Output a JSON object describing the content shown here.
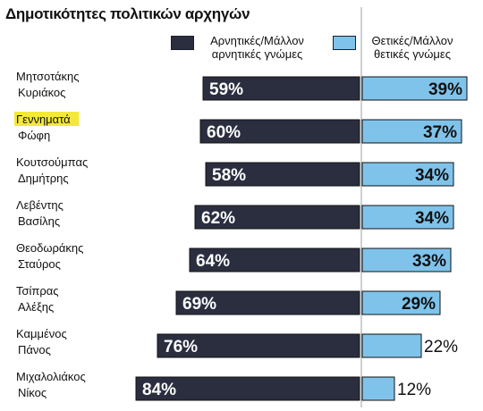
{
  "chart_data": {
    "type": "bar",
    "orientation": "horizontal-diverging",
    "title": "Δημοτικότητες πολιτικών αρχηγών",
    "categories": [
      [
        "Μητσοτάκης",
        "Κυριάκος"
      ],
      [
        "Γεννηματά",
        "Φώφη"
      ],
      [
        "Κουτσούμπας",
        "Δημήτρης"
      ],
      [
        "Λεβέντης",
        "Βασίλης"
      ],
      [
        "Θεοδωράκης",
        "Σταύρος"
      ],
      [
        "Τσίπρας",
        "Αλέξης"
      ],
      [
        "Καμμένος",
        "Πάνος"
      ],
      [
        "Μιχαλολιάκος",
        "Νίκος"
      ]
    ],
    "highlighted_category_index": 1,
    "series": [
      {
        "name": "Αρνητικές/Μάλλον αρνητικές γνώμες",
        "color": "#2a2e3f",
        "values": [
          59,
          60,
          58,
          62,
          64,
          69,
          76,
          84
        ],
        "labels": [
          "59%",
          "60%",
          "58%",
          "62%",
          "64%",
          "69%",
          "76%",
          "84%"
        ]
      },
      {
        "name": "Θετικές/Μάλλον θετικές γνώμες",
        "color": "#7fc3ea",
        "values": [
          39,
          37,
          34,
          34,
          33,
          29,
          22,
          12
        ],
        "labels": [
          "39%",
          "37%",
          "34%",
          "34%",
          "33%",
          "29%",
          "22%",
          "12%"
        ]
      }
    ],
    "colors": {
      "negative": "#2a2e3f",
      "positive": "#7fc3ea",
      "highlight": "#f4e83a",
      "text": "#111111"
    }
  }
}
